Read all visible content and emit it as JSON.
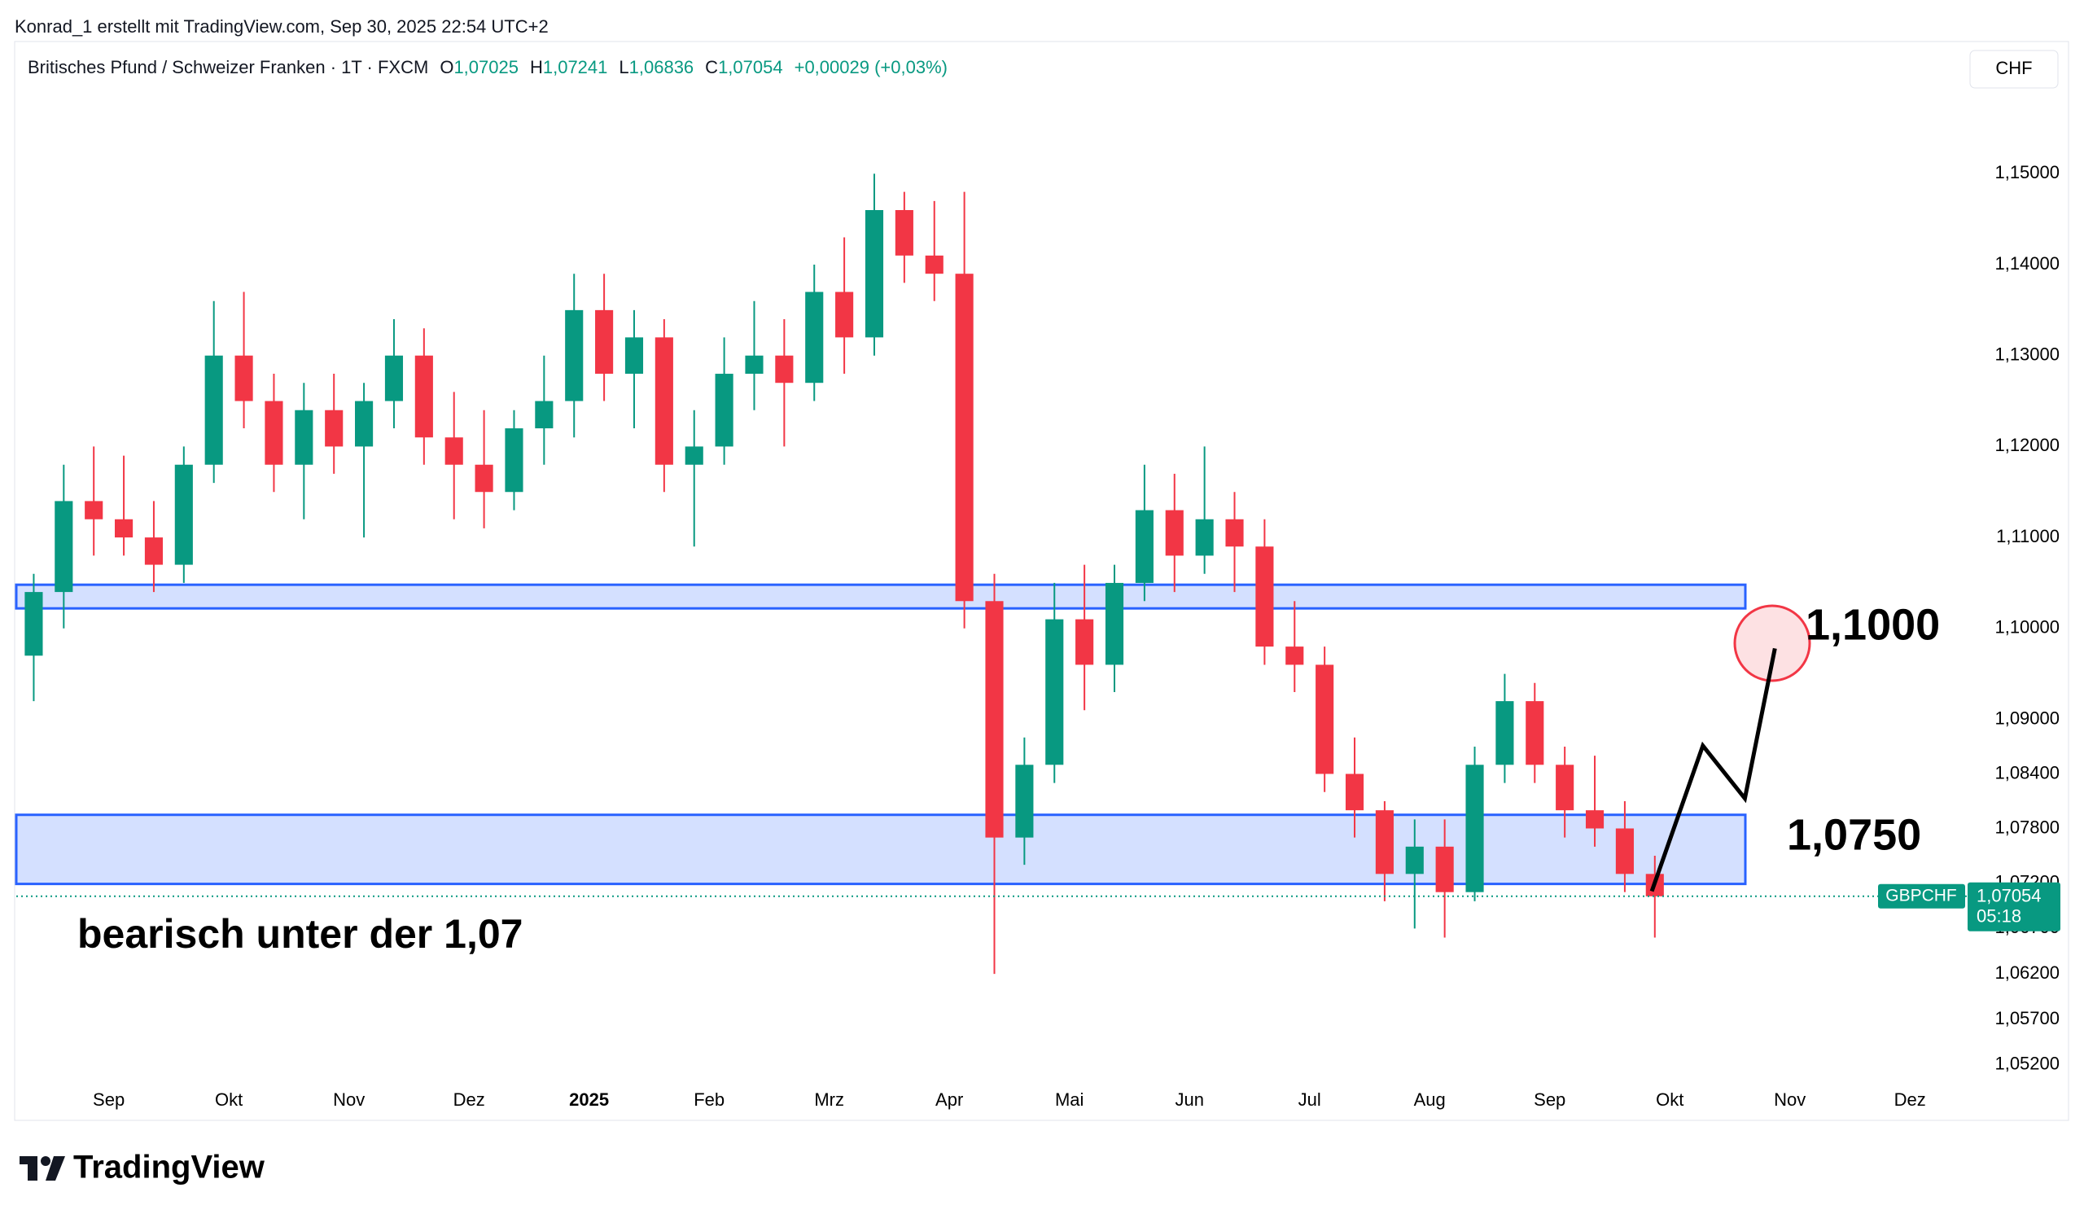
{
  "credit": "Konrad_1 erstellt mit TradingView.com, Sep 30, 2025 22:54 UTC+2",
  "header": {
    "symbol": "Britisches Pfund / Schweizer Franken · 1T · FXCM",
    "ohlc": [
      {
        "label": "O",
        "value": "1,07025"
      },
      {
        "label": "H",
        "value": "1,07241"
      },
      {
        "label": "L",
        "value": "1,06836"
      },
      {
        "label": "C",
        "value": "1,07054"
      }
    ],
    "change": "+0,00029 (+0,03%)",
    "currency": "CHF"
  },
  "logo": "TradingView",
  "chart_data": {
    "type": "candlestick",
    "up_color": "#089981",
    "down_color": "#f23645",
    "grid": false,
    "categories": [
      null,
      null,
      null,
      "Sep",
      null,
      null,
      null,
      "Okt",
      null,
      null,
      null,
      "Nov",
      null,
      null,
      null,
      "Dez",
      null,
      null,
      null,
      "2025",
      null,
      null,
      null,
      "Feb",
      null,
      null,
      null,
      "Mrz",
      null,
      null,
      null,
      "Apr",
      null,
      null,
      null,
      "Mai",
      null,
      null,
      null,
      "Jun",
      null,
      null,
      null,
      "Jul",
      null,
      null,
      null,
      "Aug",
      null,
      null,
      null,
      "Sep",
      null,
      null,
      null,
      "Okt",
      null,
      null,
      null,
      "Nov",
      null,
      null,
      null,
      "Dez",
      null
    ],
    "series": [
      {
        "name": "GBPCHF",
        "open": [
          1.097,
          1.104,
          1.114,
          1.112,
          1.11,
          1.107,
          1.118,
          1.13,
          1.125,
          1.118,
          1.124,
          1.12,
          1.125,
          1.13,
          1.121,
          1.118,
          1.115,
          1.122,
          1.125,
          1.135,
          1.128,
          1.132,
          1.118,
          1.12,
          1.128,
          1.13,
          1.127,
          1.137,
          1.132,
          1.146,
          1.141,
          1.139,
          1.103,
          1.077,
          1.085,
          1.101,
          1.096,
          1.105,
          1.113,
          1.108,
          1.112,
          1.109,
          1.098,
          1.096,
          1.084,
          1.08,
          1.073,
          1.076,
          1.071,
          1.085,
          1.092,
          1.085,
          1.08,
          1.078,
          1.073,
          null,
          null,
          null,
          null,
          null,
          null,
          null,
          null,
          null,
          null
        ],
        "high": [
          1.106,
          1.118,
          1.12,
          1.119,
          1.114,
          1.12,
          1.136,
          1.137,
          1.128,
          1.127,
          1.128,
          1.127,
          1.134,
          1.133,
          1.126,
          1.124,
          1.124,
          1.13,
          1.139,
          1.139,
          1.135,
          1.134,
          1.124,
          1.132,
          1.136,
          1.134,
          1.14,
          1.143,
          1.15,
          1.148,
          1.147,
          1.148,
          1.106,
          1.088,
          1.105,
          1.107,
          1.107,
          1.118,
          1.117,
          1.12,
          1.115,
          1.112,
          1.103,
          1.098,
          1.088,
          1.081,
          1.079,
          1.079,
          1.087,
          1.095,
          1.094,
          1.087,
          1.086,
          1.081,
          1.075,
          null,
          null,
          null,
          null,
          null,
          null,
          null,
          null,
          null,
          null
        ],
        "low": [
          1.092,
          1.1,
          1.108,
          1.108,
          1.104,
          1.105,
          1.116,
          1.122,
          1.115,
          1.112,
          1.117,
          1.11,
          1.122,
          1.118,
          1.112,
          1.111,
          1.113,
          1.118,
          1.121,
          1.125,
          1.122,
          1.115,
          1.109,
          1.118,
          1.124,
          1.12,
          1.125,
          1.128,
          1.13,
          1.138,
          1.136,
          1.1,
          1.062,
          1.074,
          1.083,
          1.091,
          1.093,
          1.103,
          1.104,
          1.106,
          1.104,
          1.096,
          1.093,
          1.082,
          1.077,
          1.07,
          1.067,
          1.066,
          1.07,
          1.083,
          1.083,
          1.077,
          1.076,
          1.071,
          1.066,
          null,
          null,
          null,
          null,
          null,
          null,
          null,
          null,
          null,
          null
        ],
        "close": [
          1.104,
          1.114,
          1.112,
          1.11,
          1.107,
          1.118,
          1.13,
          1.125,
          1.118,
          1.124,
          1.12,
          1.125,
          1.13,
          1.121,
          1.118,
          1.115,
          1.122,
          1.125,
          1.135,
          1.128,
          1.132,
          1.118,
          1.12,
          1.128,
          1.13,
          1.127,
          1.137,
          1.132,
          1.146,
          1.141,
          1.139,
          1.103,
          1.077,
          1.085,
          1.101,
          1.096,
          1.105,
          1.113,
          1.108,
          1.112,
          1.109,
          1.098,
          1.096,
          1.084,
          1.08,
          1.073,
          1.076,
          1.071,
          1.085,
          1.092,
          1.085,
          1.08,
          1.078,
          1.073,
          1.07054,
          null,
          null,
          null,
          null,
          null,
          null,
          null,
          null,
          null,
          null
        ]
      }
    ],
    "last_price": {
      "value": 1.07054,
      "label": "1,07054",
      "countdown": "05:18"
    },
    "ylim": [
      1.0459,
      1.1597
    ],
    "yticks": [
      {
        "value": 1.15,
        "label": "1,15000"
      },
      {
        "value": 1.14,
        "label": "1,14000"
      },
      {
        "value": 1.13,
        "label": "1,13000"
      },
      {
        "value": 1.12,
        "label": "1,12000"
      },
      {
        "value": 1.11,
        "label": "1,11000"
      },
      {
        "value": 1.1,
        "label": "1,10000"
      },
      {
        "value": 1.09,
        "label": "1,09000"
      },
      {
        "value": 1.084,
        "label": "1,08400"
      },
      {
        "value": 1.078,
        "label": "1,07800"
      },
      {
        "value": 1.072,
        "label": "1,07200"
      },
      {
        "value": 1.067,
        "label": "1,06700"
      },
      {
        "value": 1.062,
        "label": "1,06200"
      },
      {
        "value": 1.057,
        "label": "1,05700"
      },
      {
        "value": 1.052,
        "label": "1,05200"
      }
    ],
    "zones": [
      {
        "low": 1.1022,
        "high": 1.1048
      },
      {
        "low": 1.0719,
        "high": 1.0795
      }
    ],
    "projection": [
      1.0711,
      1.0871,
      1.0813,
      1.0978
    ],
    "annotations": [
      "1,1000",
      "1,0750",
      "bearisch unter der 1,07"
    ]
  }
}
